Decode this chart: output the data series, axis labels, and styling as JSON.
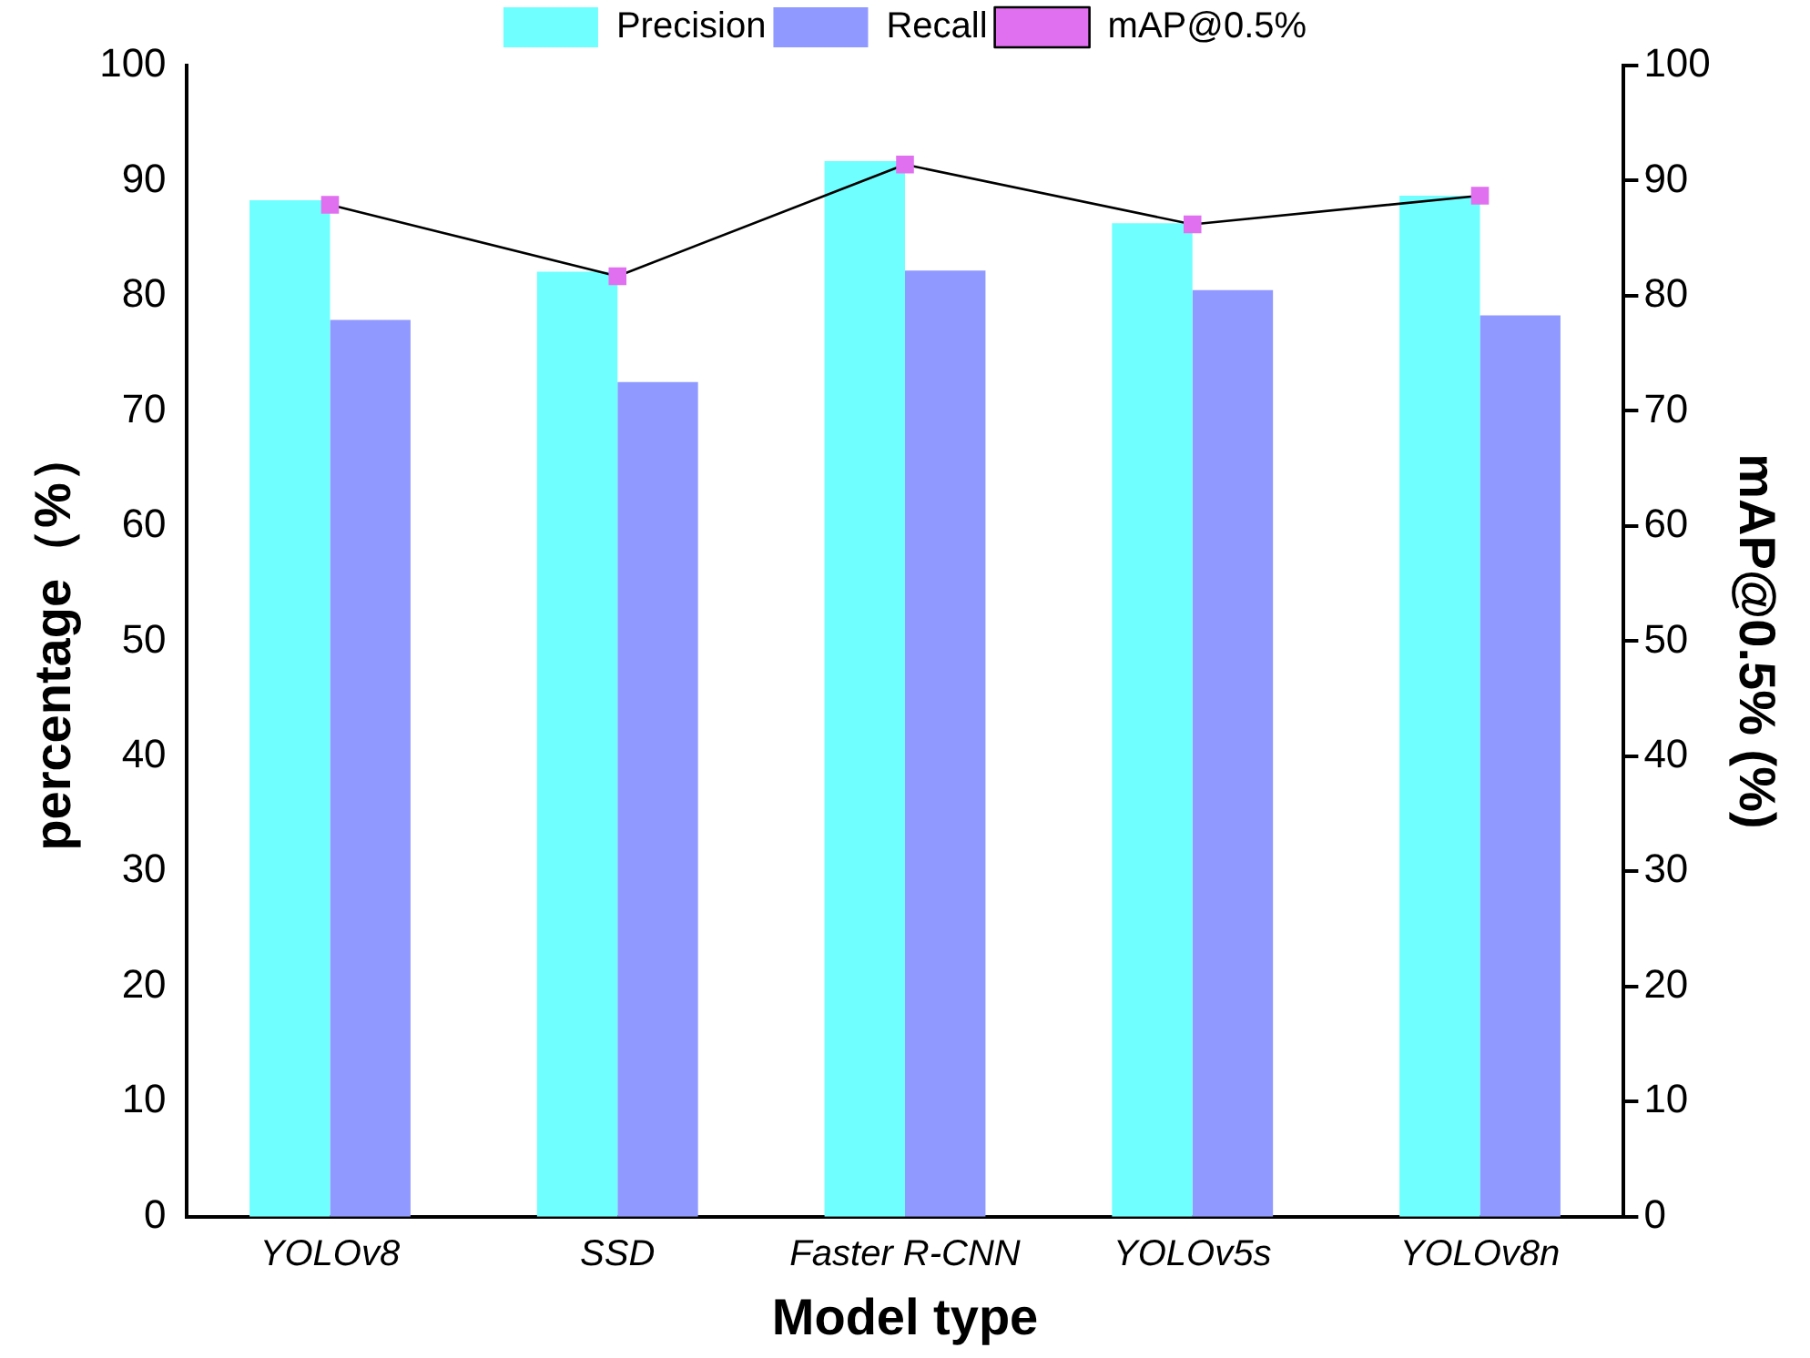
{
  "chart_data": {
    "type": "bar",
    "xlabel": "Model type",
    "ylabel": "percentage（%）",
    "y2label": "mAP@0.5% (%)",
    "categories": [
      "YOLOv8",
      "SSD",
      "Faster R-CNN",
      "YOLOv5s",
      "YOLOv8n"
    ],
    "series": [
      {
        "name": "Precision",
        "color": "#70ffff",
        "values": [
          88.3,
          82.1,
          91.7,
          86.3,
          88.7
        ]
      },
      {
        "name": "Recall",
        "color": "#9099ff",
        "values": [
          77.9,
          72.5,
          82.2,
          80.5,
          78.3
        ]
      },
      {
        "name": "mAP@0.5%",
        "type": "line",
        "axis": "y2",
        "color": "#e070f0",
        "marker": "square",
        "values": [
          87.9,
          81.7,
          91.4,
          86.2,
          88.7
        ]
      }
    ],
    "ylim": [
      0,
      100
    ],
    "yticks": [
      0,
      10,
      20,
      30,
      40,
      50,
      60,
      70,
      80,
      90,
      100
    ],
    "y2lim": [
      0,
      100
    ],
    "y2ticks": [
      0,
      10,
      20,
      30,
      40,
      50,
      60,
      70,
      80,
      90,
      100
    ],
    "legend": "top",
    "grid": false
  }
}
